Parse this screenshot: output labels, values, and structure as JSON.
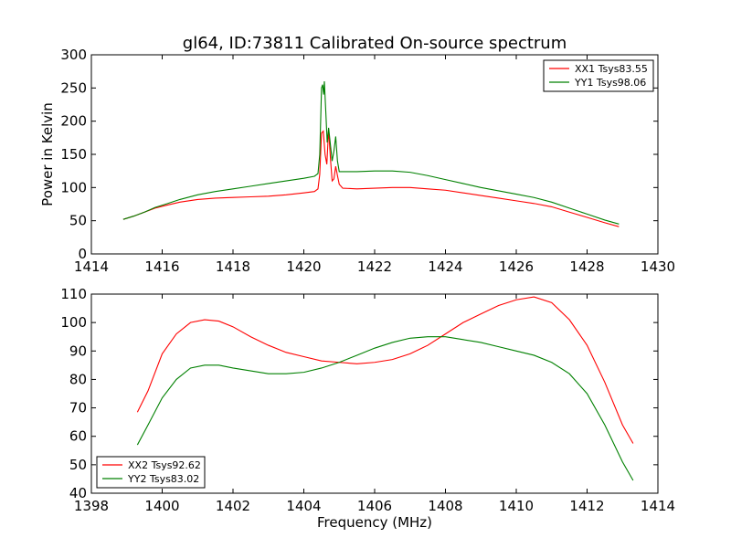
{
  "figure": {
    "title": "gl64, ID:73811 Calibrated On-source spectrum"
  },
  "chart_data": [
    {
      "type": "line",
      "title": "gl64, ID:73811 Calibrated On-source spectrum",
      "xlabel": "",
      "ylabel": "Power in Kelvin",
      "xlim": [
        1414,
        1430
      ],
      "ylim": [
        0,
        300
      ],
      "xticks": [
        1414,
        1416,
        1418,
        1420,
        1422,
        1424,
        1426,
        1428,
        1430
      ],
      "yticks": [
        0,
        50,
        100,
        150,
        200,
        250,
        300
      ],
      "grid": false,
      "legend_position": "upper right",
      "series": [
        {
          "name": "XX1 Tsys83.55",
          "color": "#ff0000",
          "points": [
            [
              1414.9,
              52
            ],
            [
              1415.2,
              57
            ],
            [
              1415.5,
              63
            ],
            [
              1415.8,
              69
            ],
            [
              1416.1,
              73
            ],
            [
              1416.5,
              78
            ],
            [
              1417,
              82
            ],
            [
              1417.5,
              84
            ],
            [
              1418,
              85
            ],
            [
              1418.5,
              86
            ],
            [
              1419,
              87
            ],
            [
              1419.5,
              89
            ],
            [
              1420,
              92
            ],
            [
              1420.3,
              94
            ],
            [
              1420.4,
              98
            ],
            [
              1420.45,
              120
            ],
            [
              1420.5,
              182
            ],
            [
              1420.55,
              185
            ],
            [
              1420.6,
              150
            ],
            [
              1420.65,
              135
            ],
            [
              1420.7,
              188
            ],
            [
              1420.75,
              145
            ],
            [
              1420.8,
              110
            ],
            [
              1420.85,
              113
            ],
            [
              1420.9,
              132
            ],
            [
              1420.95,
              118
            ],
            [
              1421,
              105
            ],
            [
              1421.1,
              99
            ],
            [
              1421.5,
              98
            ],
            [
              1422,
              99
            ],
            [
              1422.5,
              100
            ],
            [
              1423,
              100
            ],
            [
              1423.5,
              98
            ],
            [
              1424,
              96
            ],
            [
              1424.5,
              92
            ],
            [
              1425,
              88
            ],
            [
              1425.5,
              84
            ],
            [
              1426,
              80
            ],
            [
              1426.5,
              76
            ],
            [
              1427,
              71
            ],
            [
              1427.5,
              63
            ],
            [
              1428,
              55
            ],
            [
              1428.5,
              47
            ],
            [
              1428.9,
              41
            ]
          ]
        },
        {
          "name": "YY1 Tsys98.06",
          "color": "#008000",
          "points": [
            [
              1414.9,
              52
            ],
            [
              1415.2,
              57
            ],
            [
              1415.5,
              63
            ],
            [
              1415.8,
              70
            ],
            [
              1416.1,
              75
            ],
            [
              1416.5,
              82
            ],
            [
              1417,
              89
            ],
            [
              1417.5,
              94
            ],
            [
              1418,
              98
            ],
            [
              1418.5,
              102
            ],
            [
              1419,
              106
            ],
            [
              1419.5,
              110
            ],
            [
              1420,
              114
            ],
            [
              1420.3,
              117
            ],
            [
              1420.4,
              121
            ],
            [
              1420.45,
              150
            ],
            [
              1420.5,
              250
            ],
            [
              1420.53,
              255
            ],
            [
              1420.56,
              240
            ],
            [
              1420.58,
              260
            ],
            [
              1420.62,
              215
            ],
            [
              1420.66,
              168
            ],
            [
              1420.7,
              190
            ],
            [
              1420.75,
              165
            ],
            [
              1420.8,
              140
            ],
            [
              1420.85,
              155
            ],
            [
              1420.9,
              177
            ],
            [
              1420.95,
              140
            ],
            [
              1421,
              124
            ],
            [
              1421.5,
              124
            ],
            [
              1422,
              125
            ],
            [
              1422.5,
              125
            ],
            [
              1423,
              123
            ],
            [
              1423.5,
              118
            ],
            [
              1424,
              112
            ],
            [
              1424.5,
              106
            ],
            [
              1425,
              100
            ],
            [
              1425.5,
              95
            ],
            [
              1426,
              90
            ],
            [
              1426.5,
              85
            ],
            [
              1427,
              78
            ],
            [
              1427.5,
              69
            ],
            [
              1428,
              60
            ],
            [
              1428.5,
              51
            ],
            [
              1428.9,
              45
            ]
          ]
        }
      ]
    },
    {
      "type": "line",
      "title": "",
      "xlabel": "Frequency (MHz)",
      "ylabel": "",
      "xlim": [
        1398,
        1414
      ],
      "ylim": [
        40,
        110
      ],
      "xticks": [
        1398,
        1400,
        1402,
        1404,
        1406,
        1408,
        1410,
        1412,
        1414
      ],
      "yticks": [
        40,
        50,
        60,
        70,
        80,
        90,
        100,
        110
      ],
      "grid": false,
      "legend_position": "lower left",
      "series": [
        {
          "name": "XX2 Tsys92.62",
          "color": "#ff0000",
          "points": [
            [
              1399.3,
              68.5
            ],
            [
              1399.6,
              76
            ],
            [
              1400,
              89
            ],
            [
              1400.4,
              96
            ],
            [
              1400.8,
              100
            ],
            [
              1401.2,
              101
            ],
            [
              1401.6,
              100.5
            ],
            [
              1402,
              98.5
            ],
            [
              1402.5,
              95
            ],
            [
              1403,
              92
            ],
            [
              1403.5,
              89.5
            ],
            [
              1404,
              88
            ],
            [
              1404.5,
              86.5
            ],
            [
              1405,
              86
            ],
            [
              1405.5,
              85.5
            ],
            [
              1406,
              86
            ],
            [
              1406.5,
              87
            ],
            [
              1407,
              89
            ],
            [
              1407.5,
              92
            ],
            [
              1408,
              96
            ],
            [
              1408.5,
              100
            ],
            [
              1409,
              103
            ],
            [
              1409.5,
              106
            ],
            [
              1410,
              108
            ],
            [
              1410.5,
              109
            ],
            [
              1411,
              107
            ],
            [
              1411.5,
              101
            ],
            [
              1412,
              92
            ],
            [
              1412.5,
              79
            ],
            [
              1413,
              64
            ],
            [
              1413.3,
              57.5
            ]
          ]
        },
        {
          "name": "YY2 Tsys83.02",
          "color": "#008000",
          "points": [
            [
              1399.3,
              57
            ],
            [
              1399.6,
              64
            ],
            [
              1400,
              73.5
            ],
            [
              1400.4,
              80
            ],
            [
              1400.8,
              84
            ],
            [
              1401.2,
              85
            ],
            [
              1401.6,
              85
            ],
            [
              1402,
              84
            ],
            [
              1402.5,
              83
            ],
            [
              1403,
              82
            ],
            [
              1403.5,
              82
            ],
            [
              1404,
              82.5
            ],
            [
              1404.5,
              84
            ],
            [
              1405,
              86
            ],
            [
              1405.5,
              88.5
            ],
            [
              1406,
              91
            ],
            [
              1406.5,
              93
            ],
            [
              1407,
              94.5
            ],
            [
              1407.5,
              95
            ],
            [
              1408,
              95
            ],
            [
              1408.5,
              94
            ],
            [
              1409,
              93
            ],
            [
              1409.5,
              91.5
            ],
            [
              1410,
              90
            ],
            [
              1410.5,
              88.5
            ],
            [
              1411,
              86
            ],
            [
              1411.5,
              82
            ],
            [
              1412,
              75
            ],
            [
              1412.5,
              64
            ],
            [
              1413,
              51
            ],
            [
              1413.3,
              44.5
            ]
          ]
        }
      ]
    }
  ]
}
